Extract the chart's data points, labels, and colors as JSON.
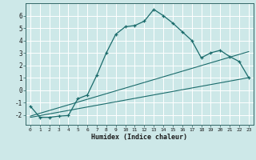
{
  "xlabel": "Humidex (Indice chaleur)",
  "bg_color": "#cde8e8",
  "grid_color": "#b8d8d8",
  "line_color": "#1a6b6b",
  "xlim": [
    -0.5,
    23.5
  ],
  "ylim": [
    -2.8,
    7.0
  ],
  "xticks": [
    0,
    1,
    2,
    3,
    4,
    5,
    6,
    7,
    8,
    9,
    10,
    11,
    12,
    13,
    14,
    15,
    16,
    17,
    18,
    19,
    20,
    21,
    22,
    23
  ],
  "yticks": [
    -2,
    -1,
    0,
    1,
    2,
    3,
    4,
    5,
    6
  ],
  "main_curve_x": [
    0,
    1,
    2,
    3,
    4,
    5,
    6,
    7,
    8,
    9,
    10,
    11,
    12,
    13,
    14,
    15,
    16,
    17,
    18,
    19,
    20,
    21,
    22,
    23
  ],
  "main_curve_y": [
    -1.3,
    -2.2,
    -2.2,
    -2.1,
    -2.05,
    -0.7,
    -0.4,
    1.2,
    3.0,
    4.5,
    5.1,
    5.2,
    5.55,
    6.5,
    6.0,
    5.4,
    4.7,
    4.0,
    2.6,
    3.0,
    3.2,
    2.7,
    2.3,
    1.0
  ],
  "line2_x": [
    0,
    23
  ],
  "line2_y": [
    -2.2,
    1.0
  ],
  "line3_x": [
    0,
    23
  ],
  "line3_y": [
    -2.1,
    3.1
  ]
}
